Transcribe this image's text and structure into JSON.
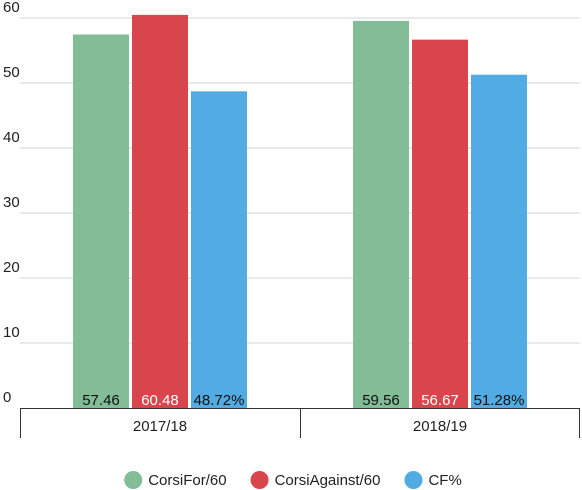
{
  "chart_data": {
    "type": "bar",
    "categories": [
      "2017/18",
      "2018/19"
    ],
    "series": [
      {
        "name": "CorsiFor/60",
        "values": [
          57.46,
          59.56
        ],
        "labels": [
          "57.46",
          "59.56"
        ],
        "color": "#82bd98",
        "label_color": "#111111"
      },
      {
        "name": "CorsiAgainst/60",
        "values": [
          60.48,
          56.67
        ],
        "labels": [
          "60.48",
          "56.67"
        ],
        "color": "#d9454c",
        "label_color": "#ffffff"
      },
      {
        "name": "CF%",
        "values": [
          48.72,
          51.28
        ],
        "labels": [
          "48.72%",
          "51.28%"
        ],
        "color": "#52abe3",
        "label_color": "#111111"
      }
    ],
    "y_ticks": [
      "0",
      "10",
      "20",
      "30",
      "40",
      "50",
      "60"
    ],
    "ylim": [
      0,
      60
    ],
    "grid": true,
    "legend_position": "bottom",
    "title": "",
    "xlabel": "",
    "ylabel": ""
  }
}
